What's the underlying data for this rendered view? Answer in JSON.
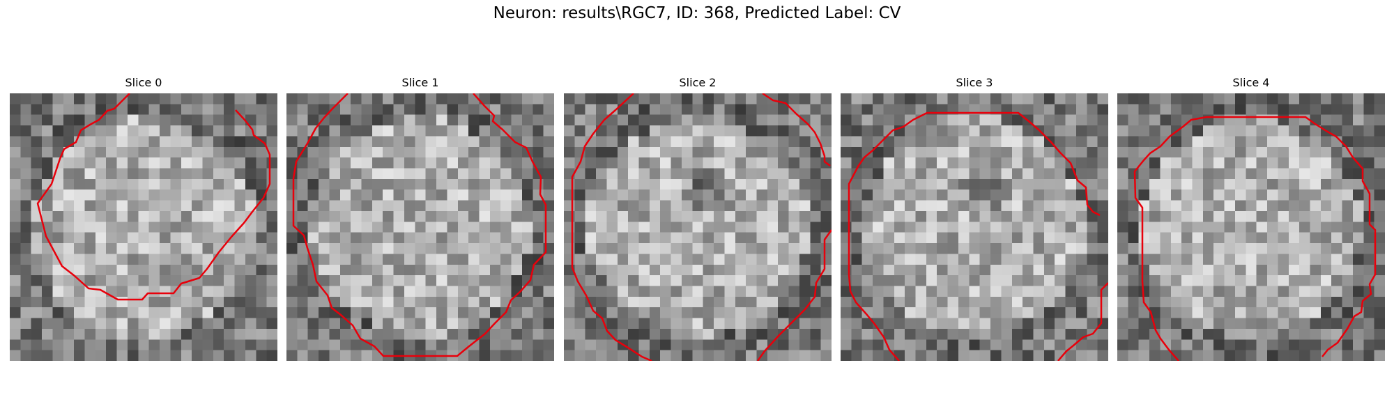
{
  "figure": {
    "title": "Neuron: results\\RGC7, ID: 368, Predicted Label: CV"
  },
  "panels": [
    {
      "title": "Slice 0",
      "seed": 11,
      "dark_core": false
    },
    {
      "title": "Slice 1",
      "seed": 23,
      "dark_core": false
    },
    {
      "title": "Slice 2",
      "seed": 37,
      "dark_core": true
    },
    {
      "title": "Slice 3",
      "seed": 41,
      "dark_core": true
    },
    {
      "title": "Slice 4",
      "seed": 53,
      "dark_core": false
    }
  ],
  "colors": {
    "contour": "#e8000b",
    "background": "#ffffff",
    "text": "#000000"
  },
  "image": {
    "grid_size": 25,
    "colormap": "grayscale"
  }
}
